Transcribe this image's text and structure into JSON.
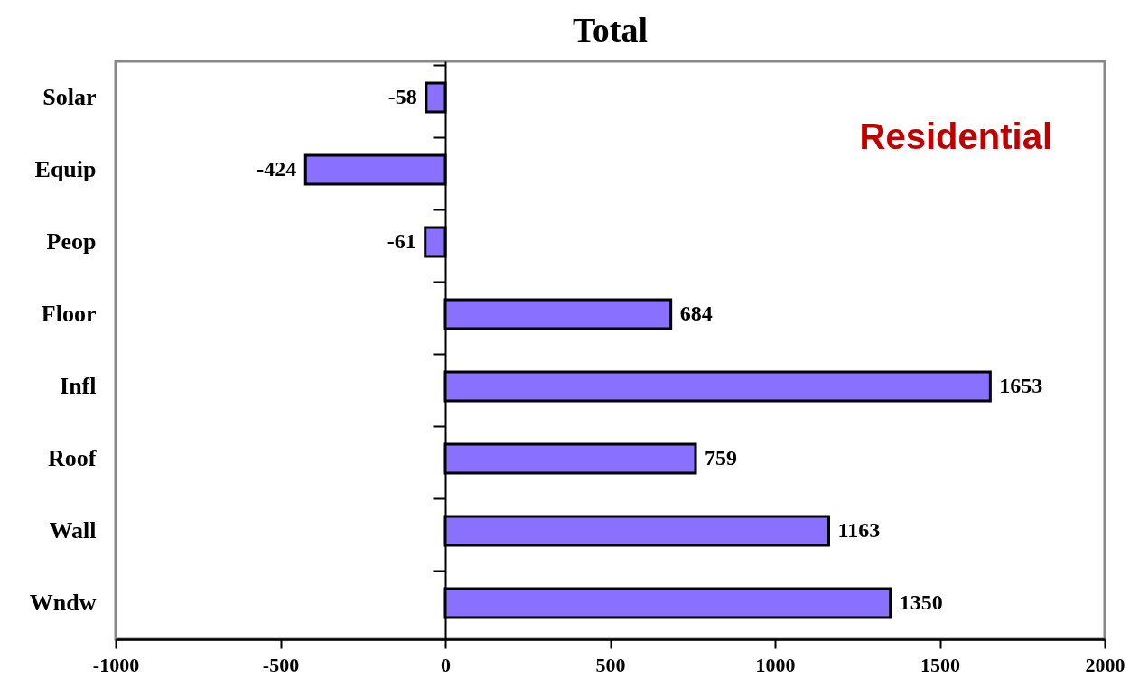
{
  "chart_data": {
    "type": "bar",
    "orientation": "horizontal",
    "title": "Total",
    "annotations": [
      "Residential"
    ],
    "categories": [
      "Solar",
      "Equip",
      "Peop",
      "Floor",
      "Infl",
      "Roof",
      "Wall",
      "Wndw"
    ],
    "values": [
      -58,
      -424,
      -61,
      684,
      1653,
      759,
      1163,
      1350
    ],
    "color": "#8a70ff",
    "data_labels": true,
    "xlim": [
      -1000,
      2000
    ],
    "xticks": [
      -1000,
      -500,
      0,
      500,
      1000,
      1500,
      2000
    ]
  }
}
